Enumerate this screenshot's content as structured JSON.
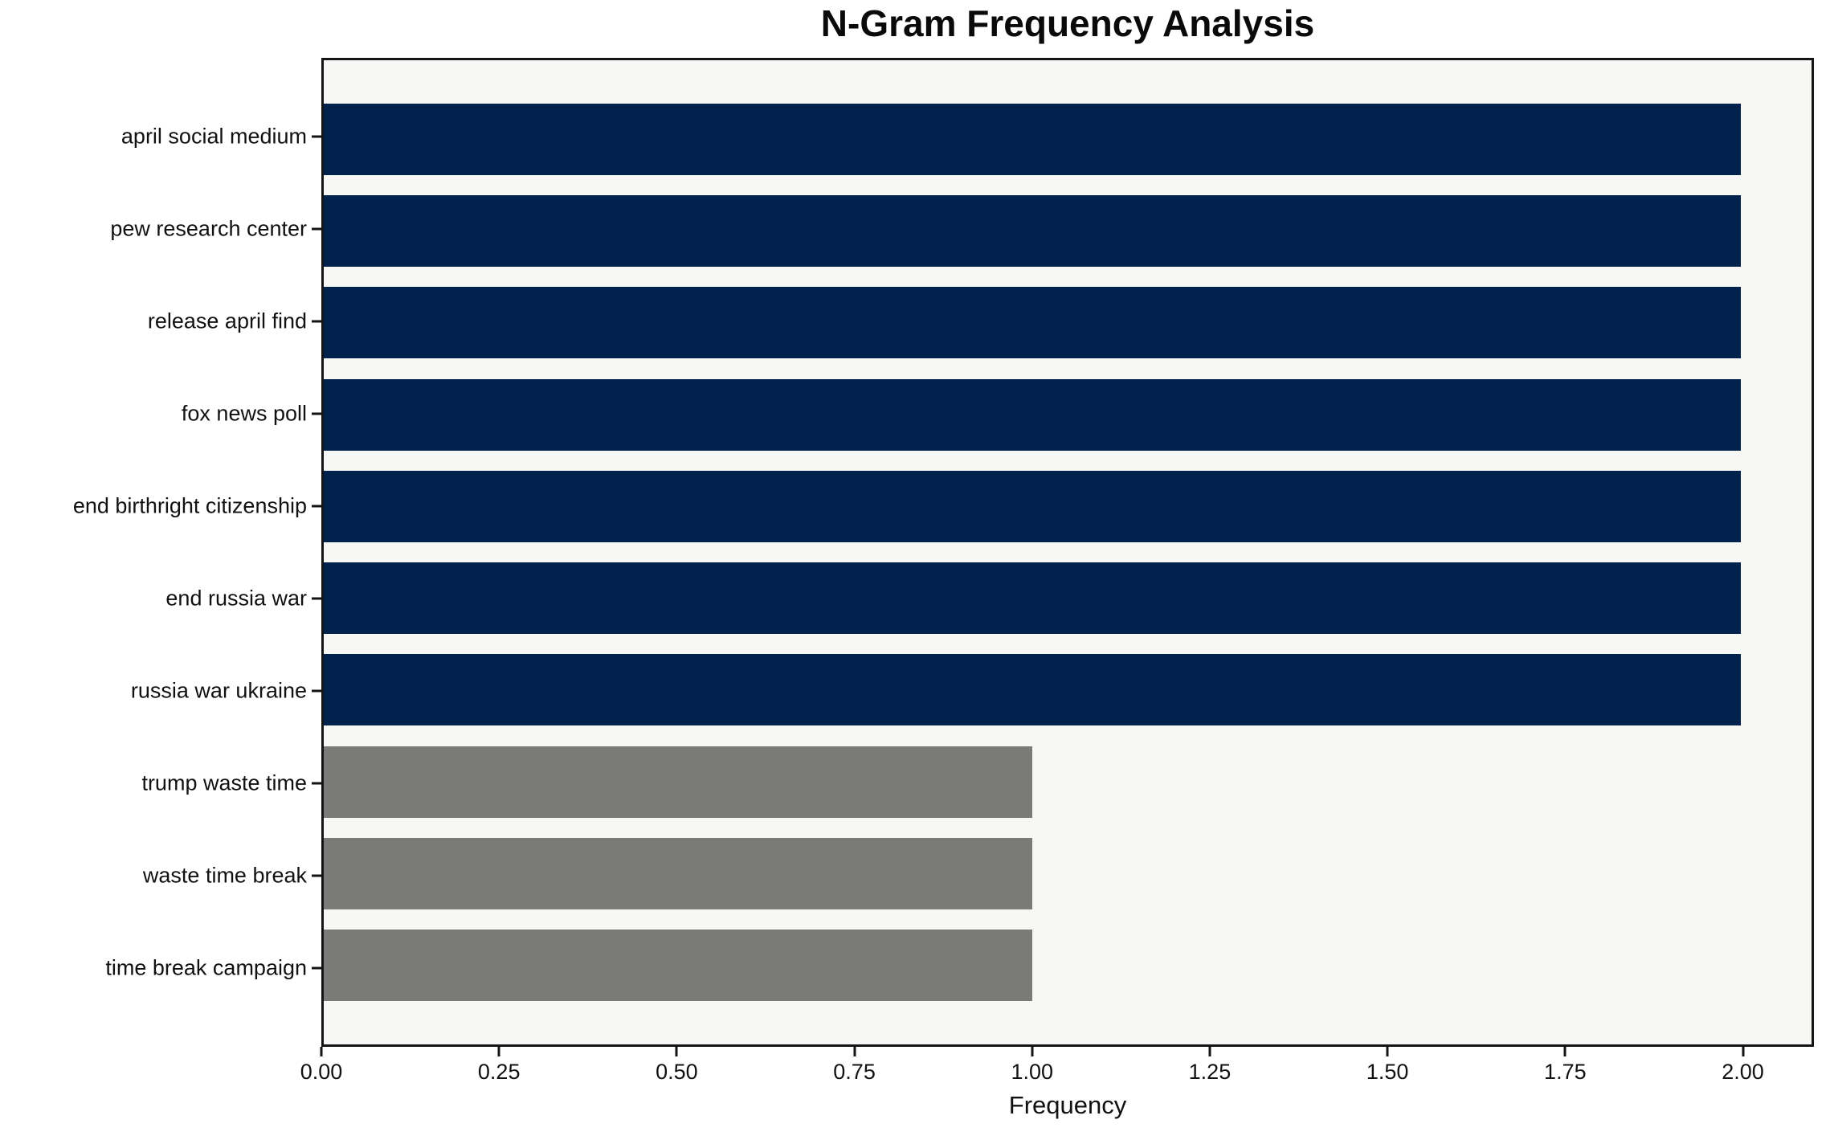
{
  "chart_data": {
    "type": "bar",
    "orientation": "horizontal",
    "title": "N-Gram Frequency Analysis",
    "xlabel": "Frequency",
    "ylabel": "",
    "categories": [
      "april social medium",
      "pew research center",
      "release april find",
      "fox news poll",
      "end birthright citizenship",
      "end russia war",
      "russia war ukraine",
      "trump waste time",
      "waste time break",
      "time break campaign"
    ],
    "values": [
      2,
      2,
      2,
      2,
      2,
      2,
      2,
      1,
      1,
      1
    ],
    "bar_colors": [
      "#02224e",
      "#02224e",
      "#02224e",
      "#02224e",
      "#02224e",
      "#02224e",
      "#02224e",
      "#7a7a78",
      "#7a7a78",
      "#7a7a78"
    ],
    "xlim": [
      0,
      2.1
    ],
    "x_ticks": [
      0.0,
      0.25,
      0.5,
      0.75,
      1.0,
      1.25,
      1.5,
      1.75,
      2.0
    ],
    "x_tick_labels": [
      "0.00",
      "0.25",
      "0.50",
      "0.75",
      "1.00",
      "1.25",
      "1.50",
      "1.75",
      "2.00"
    ],
    "grid": false,
    "legend": false,
    "colors": {
      "plot_background": "#f7f7f5",
      "figure_background": "#ffffff",
      "spine": "#141414",
      "navy_bar": "#02224e",
      "gray_bar": "#7a7a78",
      "text": "#111111"
    }
  }
}
